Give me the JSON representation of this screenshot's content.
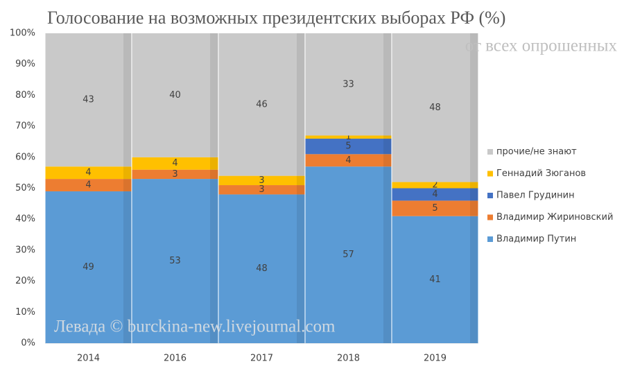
{
  "chart_data": {
    "type": "stacked_bar",
    "title": "Голосование на возможных президентских выборах РФ (%)",
    "subtitle": "от всех опрошенных",
    "watermark": "Левада © burckina-new.livejournal.com",
    "categories": [
      "2014",
      "2016",
      "2017",
      "2018",
      "2019"
    ],
    "series": [
      {
        "name": "Владимир Путин",
        "color": "#5b9bd5",
        "values": [
          49,
          53,
          48,
          57,
          41
        ]
      },
      {
        "name": "Владимир Жириновский",
        "color": "#ed7d31",
        "values": [
          4,
          3,
          3,
          4,
          5
        ]
      },
      {
        "name": "Павел Грудинин",
        "color": "#4472c4",
        "values": [
          null,
          null,
          null,
          5,
          4
        ]
      },
      {
        "name": "Геннадий Зюганов",
        "color": "#ffc000",
        "values": [
          4,
          4,
          3,
          1,
          2
        ]
      },
      {
        "name": "прочие/не знают",
        "color": "#c9c9c9",
        "values": [
          43,
          40,
          46,
          33,
          48
        ]
      }
    ],
    "ylim": [
      0,
      100
    ],
    "yticks": [
      {
        "value": 0,
        "label": "0%"
      },
      {
        "value": 10,
        "label": "10%"
      },
      {
        "value": 20,
        "label": "20%"
      },
      {
        "value": 30,
        "label": "30%"
      },
      {
        "value": 40,
        "label": "40%"
      },
      {
        "value": 50,
        "label": "50%"
      },
      {
        "value": 60,
        "label": "60%"
      },
      {
        "value": 70,
        "label": "70%"
      },
      {
        "value": 80,
        "label": "80%"
      },
      {
        "value": 90,
        "label": "90%"
      },
      {
        "value": 100,
        "label": "100%"
      }
    ],
    "legend": "right"
  }
}
